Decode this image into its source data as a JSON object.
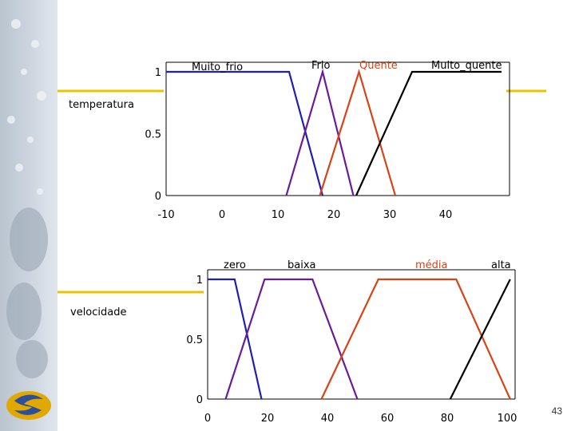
{
  "slide": {
    "page_number": "43",
    "accent_color": "#e8c400"
  },
  "chart_data": [
    {
      "type": "line",
      "title": "",
      "ylabel": "temperatura",
      "xlabel": "",
      "xlim": [
        -10,
        50
      ],
      "ylim": [
        0,
        1
      ],
      "x_ticks": [
        "-10",
        "0",
        "10",
        "20",
        "30",
        "40"
      ],
      "y_ticks": [
        "0",
        "0.5",
        "1"
      ],
      "grid": false,
      "series": [
        {
          "name": "Muito_frio",
          "color": "#1f1fb4",
          "points": [
            [
              -10,
              1
            ],
            [
              2,
              1
            ],
            [
              12,
              1
            ],
            [
              18,
              0
            ]
          ]
        },
        {
          "name": "Frio",
          "color": "#6a1b9a",
          "points": [
            [
              11.5,
              0
            ],
            [
              18,
              1
            ],
            [
              23.5,
              0
            ]
          ]
        },
        {
          "name": "Quente",
          "color": "#d84315",
          "points": [
            [
              17.5,
              0
            ],
            [
              24.5,
              1
            ],
            [
              31,
              0
            ]
          ]
        },
        {
          "name": "Muito_quente",
          "color": "#000000",
          "points": [
            [
              24,
              0
            ],
            [
              34,
              1
            ],
            [
              50,
              1
            ]
          ]
        }
      ]
    },
    {
      "type": "line",
      "title": "",
      "ylabel": "velocidade",
      "xlabel": "",
      "xlim": [
        0,
        100
      ],
      "ylim": [
        0,
        1
      ],
      "x_ticks": [
        "0",
        "20",
        "40",
        "60",
        "80",
        "100"
      ],
      "y_ticks": [
        "0",
        "0.5",
        "1"
      ],
      "grid": false,
      "series": [
        {
          "name": "zero",
          "color": "#1f1fb4",
          "points": [
            [
              0,
              1
            ],
            [
              9,
              1
            ],
            [
              18,
              0
            ]
          ]
        },
        {
          "name": "baixa",
          "color": "#6a1b9a",
          "points": [
            [
              6,
              0
            ],
            [
              19,
              1
            ],
            [
              35,
              1
            ],
            [
              50,
              0
            ]
          ]
        },
        {
          "name": "média",
          "color": "#d84315",
          "points": [
            [
              38,
              0
            ],
            [
              57,
              1
            ],
            [
              83,
              1
            ],
            [
              101,
              0
            ]
          ]
        },
        {
          "name": "alta",
          "color": "#000000",
          "points": [
            [
              81,
              0
            ],
            [
              101,
              1
            ]
          ]
        }
      ]
    }
  ]
}
